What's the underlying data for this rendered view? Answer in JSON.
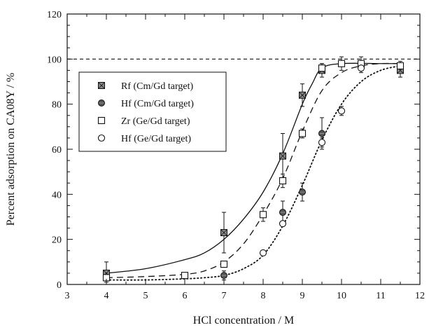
{
  "chart_data": {
    "type": "scatter",
    "title": "",
    "xlabel": "HCl concentration / M",
    "ylabel": "Percent adsorption on CA08Y / %",
    "xlim": [
      3,
      12
    ],
    "ylim": [
      0,
      120
    ],
    "xticks": [
      3,
      4,
      5,
      6,
      7,
      8,
      9,
      10,
      11,
      12
    ],
    "yticks": [
      0,
      20,
      40,
      60,
      80,
      100,
      120
    ],
    "grid": false,
    "legend_position": "center-left",
    "reference_line": {
      "y": 100,
      "style": "dashed"
    },
    "series": [
      {
        "name": "Rf (Cm/Gd target)",
        "marker": "square-crossed",
        "x": [
          4.0,
          7.0,
          8.5,
          9.0,
          9.5,
          11.5
        ],
        "y": [
          5,
          23,
          57,
          84,
          95,
          95
        ],
        "err": [
          5,
          9,
          10,
          5,
          3,
          3
        ]
      },
      {
        "name": "Hf (Cm/Gd target)",
        "marker": "circle-filled",
        "x": [
          7.0,
          8.5,
          9.0,
          9.5
        ],
        "y": [
          4,
          32,
          41,
          67
        ],
        "err": [
          2,
          5,
          4,
          7
        ]
      },
      {
        "name": "Zr (Ge/Gd target)",
        "marker": "square-open",
        "x": [
          4.0,
          6.0,
          7.0,
          8.0,
          8.5,
          9.0,
          9.5,
          10.0,
          10.5,
          11.5
        ],
        "y": [
          3,
          4,
          9,
          31,
          46,
          67,
          96,
          98,
          98,
          97
        ],
        "err": [
          2,
          1,
          1,
          3,
          3,
          2,
          2,
          3,
          3,
          2
        ]
      },
      {
        "name": "Hf (Ge/Gd target)",
        "marker": "circle-open",
        "x": [
          8.0,
          8.5,
          9.5,
          10.0,
          10.5
        ],
        "y": [
          14,
          27,
          63,
          77,
          96
        ],
        "err": [
          1,
          1,
          2,
          2,
          2
        ]
      }
    ],
    "fits": [
      {
        "style": "solid",
        "x": [
          4.0,
          5.0,
          6.0,
          6.5,
          7.0,
          7.5,
          8.0,
          8.5,
          9.0,
          9.25,
          9.5,
          10.0,
          11.0,
          11.5
        ],
        "y": [
          5,
          7,
          11,
          14,
          20,
          29,
          41,
          58,
          80,
          89,
          96,
          98,
          98,
          98
        ]
      },
      {
        "style": "dashed",
        "x": [
          4.0,
          5.0,
          6.0,
          6.5,
          7.0,
          7.5,
          8.0,
          8.5,
          9.0,
          9.5,
          10.0,
          10.5,
          11.0,
          11.5
        ],
        "y": [
          3,
          3.5,
          4.5,
          6,
          10,
          18,
          31,
          47,
          68,
          86,
          94,
          97,
          98,
          98
        ]
      },
      {
        "style": "dotted",
        "x": [
          4.0,
          5.0,
          6.0,
          6.5,
          7.0,
          7.5,
          8.0,
          8.5,
          9.0,
          9.5,
          10.0,
          10.5,
          11.0,
          11.5
        ],
        "y": [
          2,
          2,
          2.5,
          3,
          4,
          7,
          13,
          26,
          44,
          64,
          80,
          90,
          95,
          97
        ]
      }
    ]
  }
}
